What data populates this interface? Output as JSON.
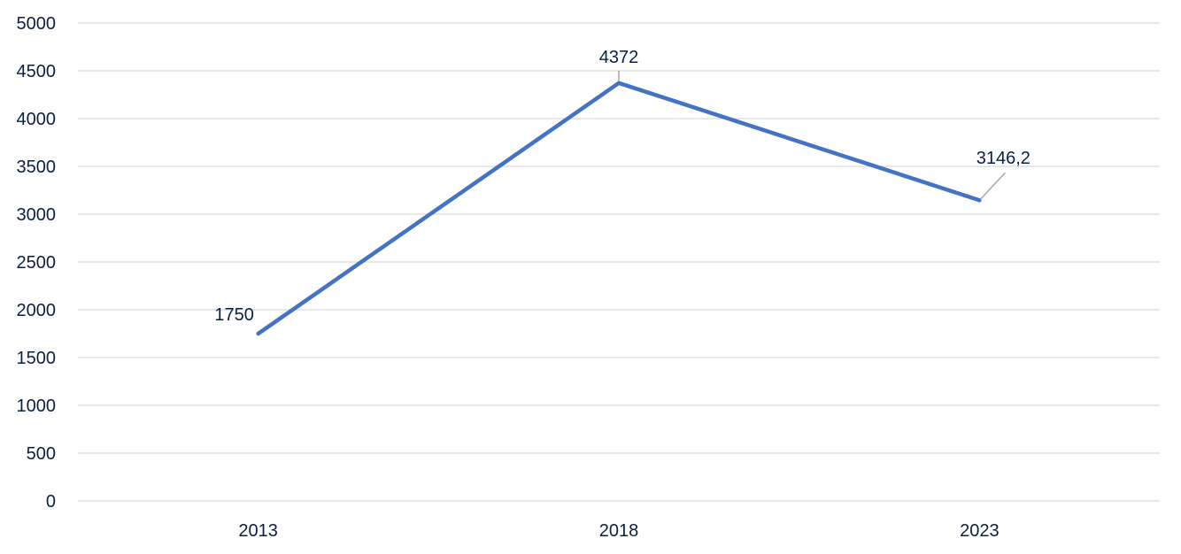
{
  "chart_data": {
    "type": "line",
    "title": "",
    "xlabel": "",
    "ylabel": "",
    "categories": [
      "2013",
      "2018",
      "2023"
    ],
    "series": [
      {
        "values": [
          1750,
          4372,
          3146.2
        ],
        "labels": [
          "1750",
          "4372",
          "3146,2"
        ],
        "color": "#4472c4"
      }
    ],
    "ylim": [
      0,
      5000
    ],
    "yticks": [
      0,
      500,
      1000,
      1500,
      2000,
      2500,
      3000,
      3500,
      4000,
      4500,
      5000
    ],
    "ytick_labels": [
      "0",
      "500",
      "1000",
      "1500",
      "2000",
      "2500",
      "3000",
      "3500",
      "4000",
      "4500",
      "5000"
    ],
    "grid": true,
    "legend": "none"
  }
}
